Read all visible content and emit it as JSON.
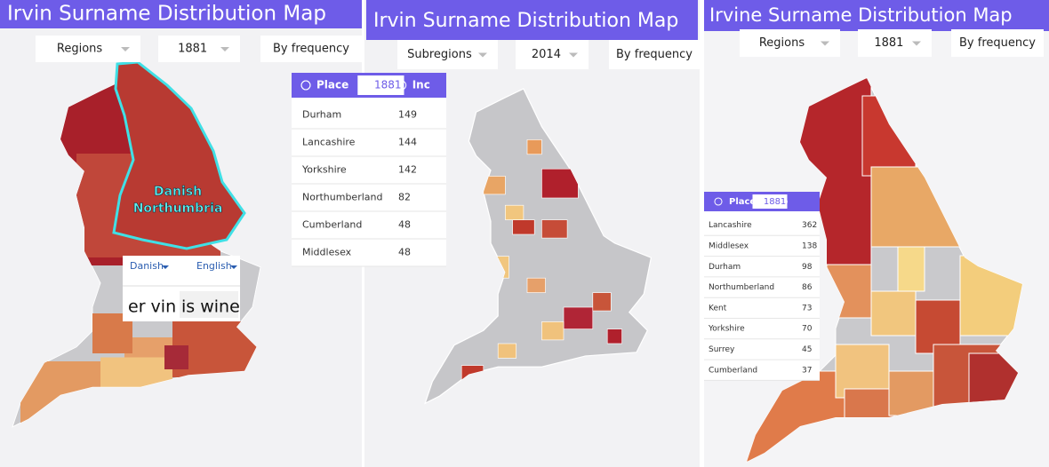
{
  "panels": [
    {
      "title": "Irvin Surname Distribution Map",
      "controls": [
        "Regions",
        "1881",
        "By frequency"
      ],
      "table": {
        "headers": [
          "Place",
          "1881",
          "Inc"
        ],
        "rows": [
          [
            "Durham",
            149
          ],
          [
            "Lancashire",
            144
          ],
          [
            "Yorkshire",
            142
          ],
          [
            "Northumberland",
            82
          ],
          [
            "Cumberland",
            48
          ],
          [
            "Middlesex",
            48
          ]
        ]
      },
      "overlay": [
        "Danish",
        "Northumbria"
      ],
      "translator": {
        "source": "Danish",
        "target": "English",
        "text": [
          "er vin",
          "is wine"
        ]
      }
    },
    {
      "title": "Irvin Surname Distribution Map",
      "controls": [
        "Subregions",
        "2014",
        "By frequency"
      ]
    },
    {
      "title": "Irvine Surname Distribution Map",
      "controls": [
        "Regions",
        "1881",
        "By frequency"
      ],
      "table": {
        "headers": [
          "Place",
          "1881"
        ],
        "rows": [
          [
            "Lancashire",
            362
          ],
          [
            "Middlesex",
            138
          ],
          [
            "Durham",
            98
          ],
          [
            "Northumberland",
            86
          ],
          [
            "Kent",
            73
          ],
          [
            "Yorkshire",
            70
          ],
          [
            "Surrey",
            45
          ],
          [
            "Cumberland",
            37
          ]
        ]
      }
    }
  ]
}
